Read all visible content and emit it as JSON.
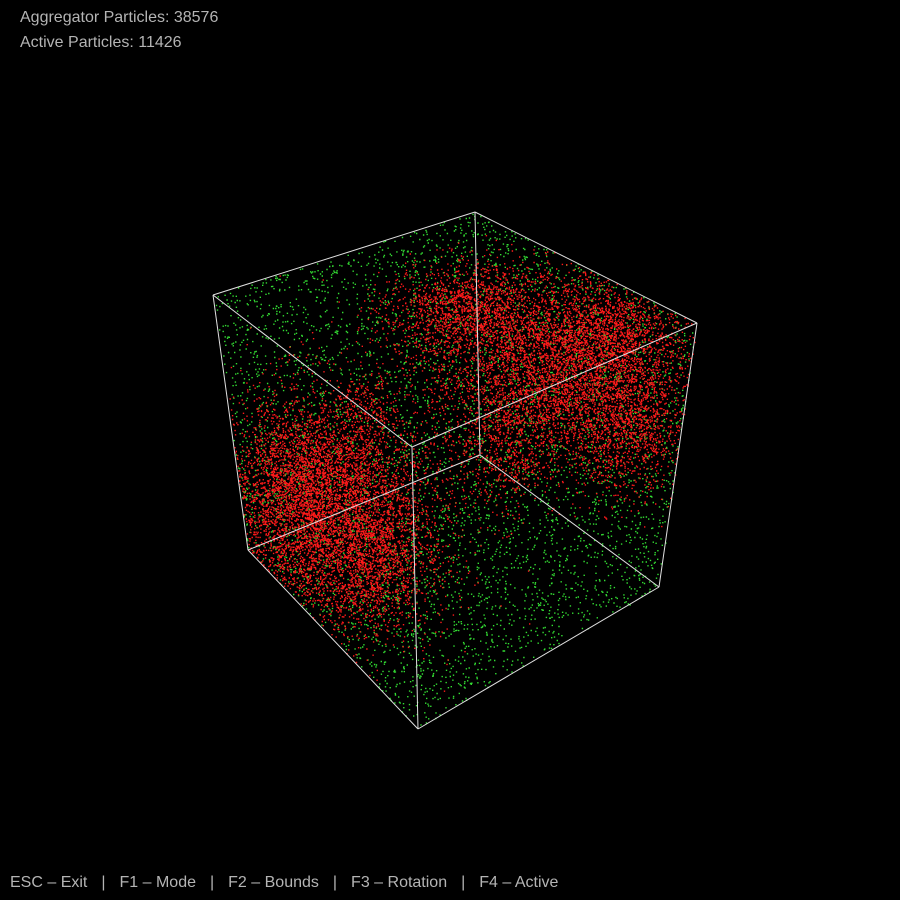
{
  "hud": {
    "aggregator_label": "Aggregator Particles:",
    "aggregator_count": "38576",
    "active_label": "Active Particles:",
    "active_count": "11426"
  },
  "controls": {
    "separator": "|",
    "items": [
      {
        "key": "ESC",
        "action": "Exit",
        "text": "ESC – Exit"
      },
      {
        "key": "F1",
        "action": "Mode",
        "text": "F1 – Mode"
      },
      {
        "key": "F2",
        "action": "Bounds",
        "text": "F2 – Bounds"
      },
      {
        "key": "F3",
        "action": "Rotation",
        "text": "F3 – Rotation"
      },
      {
        "key": "F4",
        "action": "Active",
        "text": "F4 – Active"
      }
    ]
  },
  "colors": {
    "background": "#000000",
    "hud_text": "#b4b4b4",
    "bounds_line": "#e0e0e0",
    "aggregator_particle": "#ff1a1a",
    "active_particle": "#33dd33"
  }
}
